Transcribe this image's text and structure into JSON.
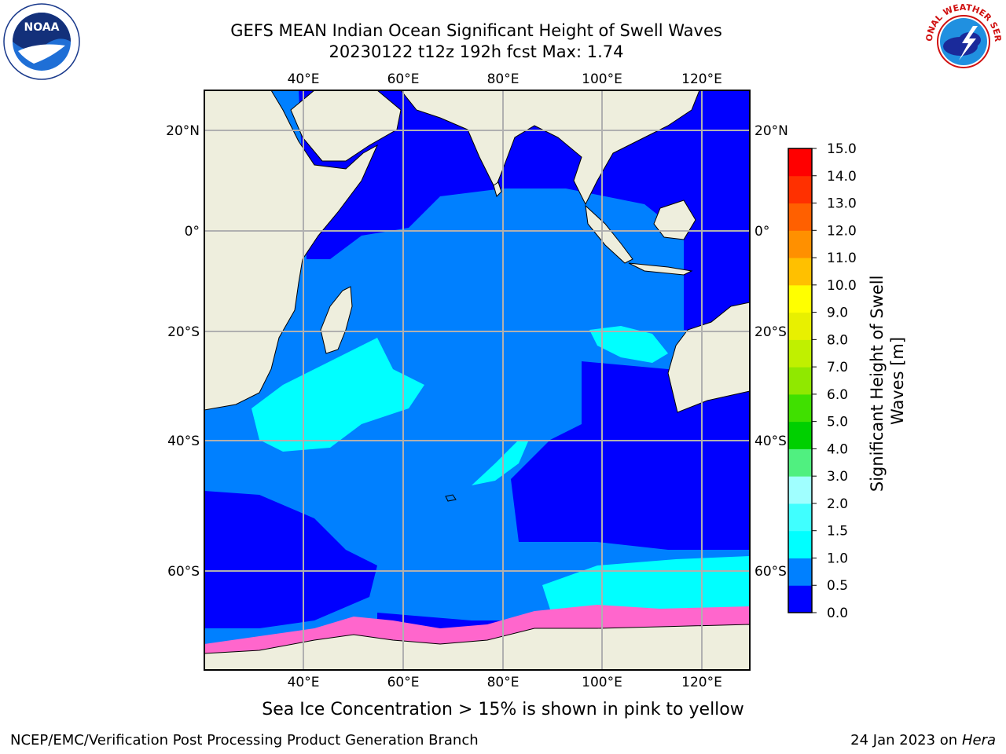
{
  "title": {
    "line1": "GEFS MEAN Indian Ocean Significant Height of Swell Waves",
    "line2": "20230122 t12z 192h fcst   Max: 1.74"
  },
  "map": {
    "lon_ticks": [
      "40°E",
      "60°E",
      "80°E",
      "100°E",
      "120°E"
    ],
    "lat_ticks": [
      "20°N",
      "0°",
      "20°S",
      "40°S",
      "60°S"
    ]
  },
  "colorbar": {
    "label": "Significant Height of Swell Waves [m]",
    "ticks": [
      "0.0",
      "0.5",
      "1.0",
      "1.5",
      "2.0",
      "3.0",
      "4.0",
      "5.0",
      "6.0",
      "7.0",
      "8.0",
      "9.0",
      "10.0",
      "11.0",
      "12.0",
      "13.0",
      "14.0",
      "15.0"
    ],
    "colors": [
      "#0000ff",
      "#0080ff",
      "#00ffff",
      "#40ffff",
      "#a0ffff",
      "#50f080",
      "#00d000",
      "#40e000",
      "#90e800",
      "#c0f000",
      "#e8f000",
      "#ffff00",
      "#ffc000",
      "#ff9000",
      "#ff6000",
      "#ff3000",
      "#ff0000"
    ]
  },
  "caption": "Sea Ice Concentration > 15% is shown in pink to yellow",
  "footer": {
    "left": "NCEP/EMC/Verification Post Processing Product Generation Branch",
    "right_date": "24 Jan 2023 on",
    "right_host": "Hera"
  },
  "logos": {
    "left": {
      "text": "NOAA",
      "icon": "noaa-logo"
    },
    "right": {
      "icon": "nws-logo",
      "text": "NATIONAL WEATHER SERVICE"
    }
  },
  "colors": {
    "land": "#eeeedd",
    "swell_low": "#0000ff",
    "swell_mid": "#0080ff",
    "swell_high": "#00ffff",
    "sea_ice": "#ff66cc"
  }
}
